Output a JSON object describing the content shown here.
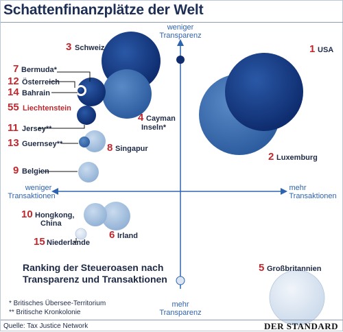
{
  "title": "Schattenfinanzplätze der Welt",
  "axes": {
    "top": [
      "weniger",
      "Transparenz"
    ],
    "bottom": [
      "mehr",
      "Transparenz"
    ],
    "left": [
      "weniger",
      "Transaktionen"
    ],
    "right": [
      "mehr",
      "Transaktionen"
    ]
  },
  "places": [
    {
      "rank": "1",
      "name": "USA"
    },
    {
      "rank": "2",
      "name": "Luxemburg"
    },
    {
      "rank": "3",
      "name": "Schweiz"
    },
    {
      "rank": "4",
      "name": "Cayman Inseln*"
    },
    {
      "rank": "5",
      "name": "Großbritannien"
    },
    {
      "rank": "6",
      "name": "Irland"
    },
    {
      "rank": "7",
      "name": "Bermuda*"
    },
    {
      "rank": "8",
      "name": "Singapur"
    },
    {
      "rank": "9",
      "name": "Belgien"
    },
    {
      "rank": "10",
      "name": "Hongkong, China"
    },
    {
      "rank": "11",
      "name": "Jersey**"
    },
    {
      "rank": "12",
      "name": "Österreich"
    },
    {
      "rank": "13",
      "name": "Guernsey**"
    },
    {
      "rank": "14",
      "name": "Bahrain"
    },
    {
      "rank": "15",
      "name": "Niederlande"
    },
    {
      "rank": "55",
      "name": "Liechtenstein"
    }
  ],
  "ranking_text": [
    "Ranking der Steueroasen nach",
    "Transparenz und Transaktionen"
  ],
  "footnotes": [
    "* Britisches Übersee-Territorium",
    "** Britische Kronkolonie"
  ],
  "source": "Quelle: Tax Justice Network",
  "publisher": "DER STANDARD",
  "colors": {
    "dark_blue": "#1a3c84",
    "mid_blue": "#3d6eb0",
    "light_blue": "#a9c2de",
    "pale_blue": "#dbe6f2",
    "rank_red": "#c0272d",
    "axis_blue": "#2e63b0"
  }
}
